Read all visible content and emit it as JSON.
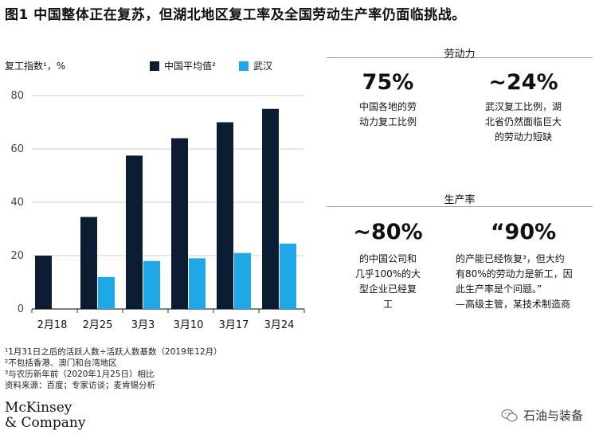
{
  "title": "图1  中国整体正在复苏，但湖北地区复工率及全国劳动生产率仍面临挑战。",
  "ylabel": "复工指数¹，%",
  "chart_data": {
    "type": "bar",
    "categories": [
      "2月18",
      "2月25",
      "3月3",
      "3月10",
      "3月17",
      "3月24"
    ],
    "series": [
      {
        "name": "中国平均值²",
        "values": [
          20,
          34.5,
          57.5,
          64,
          70,
          75
        ],
        "color": "#0b1c33"
      },
      {
        "name": "武汉",
        "values": [
          null,
          12,
          18,
          19,
          21,
          24.5
        ],
        "color": "#1fa8e8"
      }
    ],
    "ylim": [
      0,
      80
    ],
    "yticks": [
      0,
      20,
      40,
      60,
      80
    ],
    "grid": true,
    "legend": "top"
  },
  "right_panel": {
    "labor": {
      "heading": "劳动力",
      "stat1": {
        "value": "75%",
        "desc": [
          "中国各地的劳",
          "动力复工比例"
        ]
      },
      "stat2": {
        "value": "~24%",
        "desc": [
          "武汉复工比例，湖",
          "北省仍然面临巨大",
          "的劳动力短缺"
        ]
      }
    },
    "productivity": {
      "heading": "生产率",
      "stat1": {
        "value": "~80%",
        "desc": [
          "的中国公司和",
          "几乎100%的大",
          "型企业已经复",
          "工"
        ]
      },
      "stat2": {
        "value": "“90%",
        "desc": [
          "的产能已经恢复³，但大约",
          "有80%的劳动力是新工，因",
          "此生产率是个问题。”",
          "—高级主管，某技术制造商"
        ]
      }
    }
  },
  "footnotes": [
    "¹1月31日之后的活跃人数÷活跃人数基数（2019年12月）",
    "²不包括香港、澳门和台湾地区",
    "³与农历新年前（2020年1月25日）相比",
    "资料来源：百度；专家访谈；麦肯锡分析"
  ],
  "logo": [
    "McKinsey",
    "& Company"
  ],
  "watermark": "石油与装备"
}
